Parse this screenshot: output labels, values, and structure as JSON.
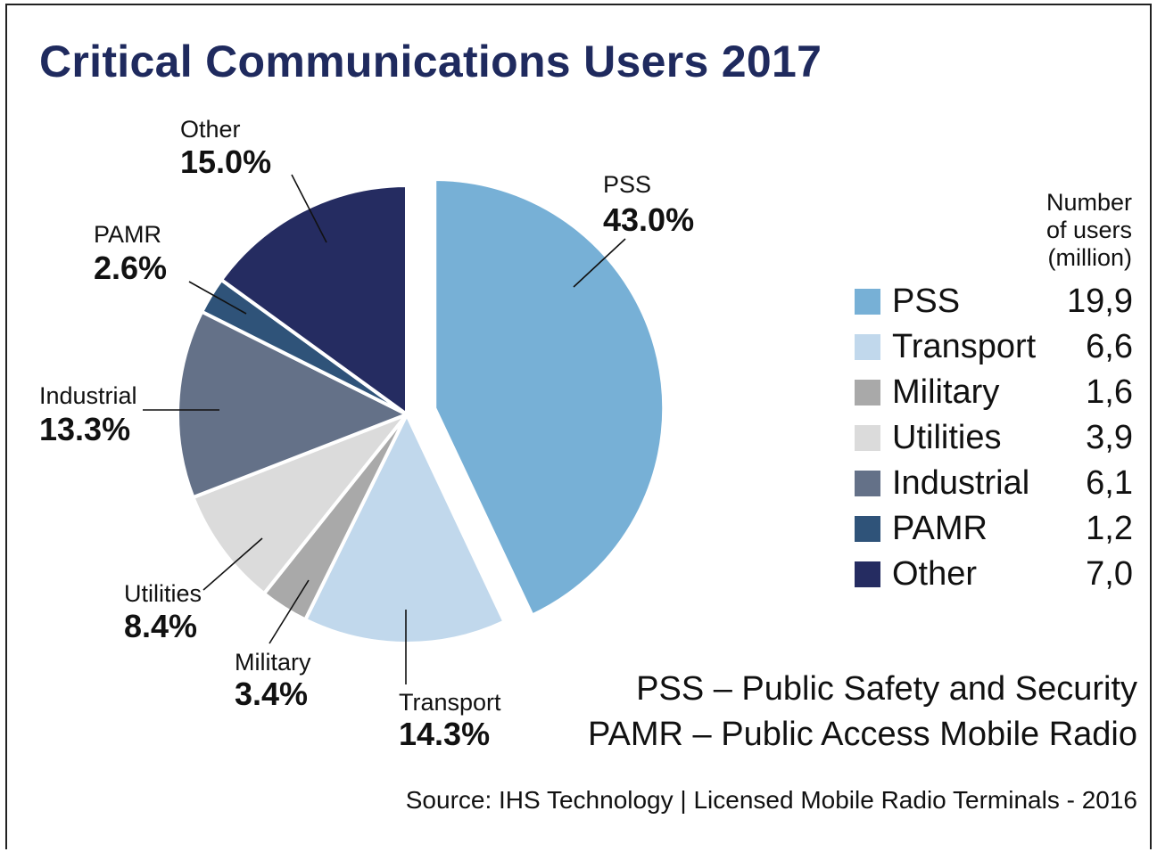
{
  "title": "Critical Communications Users 2017",
  "legend": {
    "heading": "Number\nof users\n(million)",
    "items": [
      {
        "label": "PSS",
        "value": "19,9",
        "color": "#77b0d6"
      },
      {
        "label": "Transport",
        "value": "6,6",
        "color": "#c1d8ec"
      },
      {
        "label": "Military",
        "value": "1,6",
        "color": "#a9a9a9"
      },
      {
        "label": "Utilities",
        "value": "3,9",
        "color": "#dbdbdb"
      },
      {
        "label": "Industrial",
        "value": "6,1",
        "color": "#647188"
      },
      {
        "label": "PAMR",
        "value": "1,2",
        "color": "#2f5379"
      },
      {
        "label": "Other",
        "value": "7,0",
        "color": "#252c61"
      }
    ]
  },
  "abbreviations": [
    "PSS – Public Safety and Security",
    "PAMR – Public Access Mobile Radio"
  ],
  "source": "Source: IHS Technology | Licensed Mobile Radio Terminals - 2016",
  "chart_data": {
    "type": "pie",
    "title": "Critical Communications Users 2017",
    "slices": [
      {
        "name": "PSS",
        "percent": 43.0,
        "percent_label": "43.0%",
        "users_million": 19.9,
        "color": "#77b0d6",
        "exploded": true
      },
      {
        "name": "Transport",
        "percent": 14.3,
        "percent_label": "14.3%",
        "users_million": 6.6,
        "color": "#c1d8ec"
      },
      {
        "name": "Military",
        "percent": 3.4,
        "percent_label": "3.4%",
        "users_million": 1.6,
        "color": "#a9a9a9"
      },
      {
        "name": "Utilities",
        "percent": 8.4,
        "percent_label": "8.4%",
        "users_million": 3.9,
        "color": "#dbdbdb"
      },
      {
        "name": "Industrial",
        "percent": 13.3,
        "percent_label": "13.3%",
        "users_million": 6.1,
        "color": "#647188"
      },
      {
        "name": "PAMR",
        "percent": 2.6,
        "percent_label": "2.6%",
        "users_million": 1.2,
        "color": "#2f5379"
      },
      {
        "name": "Other",
        "percent": 15.0,
        "percent_label": "15.0%",
        "users_million": 7.0,
        "color": "#252c61"
      }
    ],
    "legend_position": "right",
    "start_angle": "12 o'clock, clockwise"
  }
}
